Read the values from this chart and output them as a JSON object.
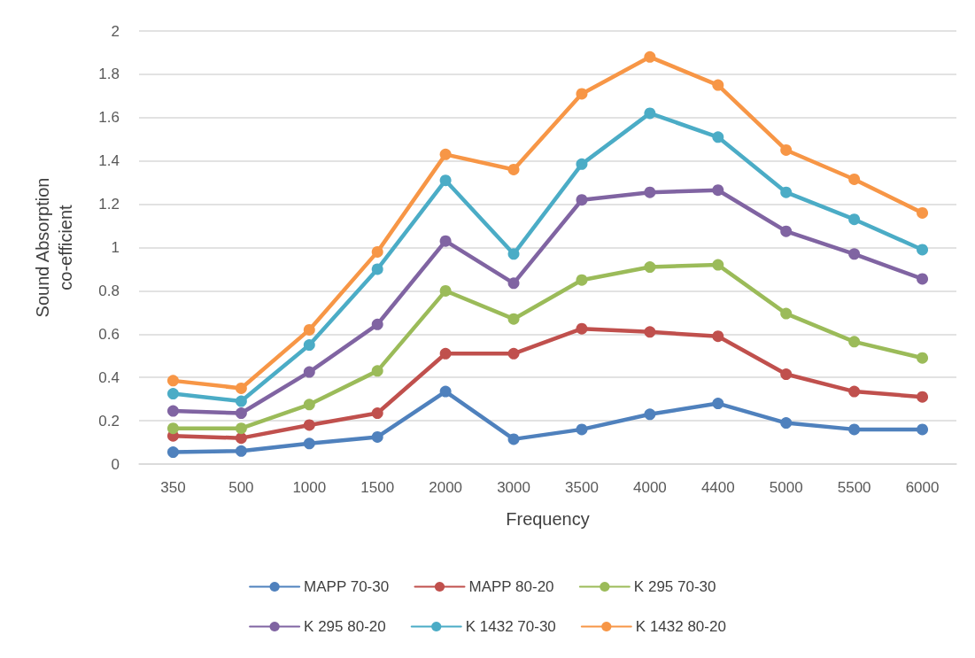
{
  "chart_data": {
    "type": "line",
    "xlabel": "Frequency",
    "ylabel": "Sound Absorption\nco-efficient",
    "categories": [
      "350",
      "500",
      "1000",
      "1500",
      "2000",
      "3000",
      "3500",
      "4000",
      "4400",
      "5000",
      "5500",
      "6000"
    ],
    "ylim": [
      0,
      2
    ],
    "yticks": [
      0,
      0.2,
      0.4,
      0.6,
      0.8,
      1,
      1.2,
      1.4,
      1.6,
      1.8,
      2
    ],
    "grid": "y",
    "legend": "bottom",
    "marker": "circle",
    "line_style": "solid",
    "series": [
      {
        "name": "MAPP 70-30",
        "color": "#4f81bd",
        "values": [
          0.055,
          0.06,
          0.095,
          0.125,
          0.335,
          0.115,
          0.16,
          0.23,
          0.28,
          0.19,
          0.16,
          0.16
        ]
      },
      {
        "name": "MAPP 80-20",
        "color": "#c0504d",
        "values": [
          0.13,
          0.12,
          0.18,
          0.235,
          0.51,
          0.51,
          0.625,
          0.61,
          0.59,
          0.415,
          0.335,
          0.31
        ]
      },
      {
        "name": "K 295 70-30",
        "color": "#9bbb59",
        "values": [
          0.165,
          0.165,
          0.275,
          0.43,
          0.8,
          0.67,
          0.85,
          0.91,
          0.92,
          0.695,
          0.565,
          0.49
        ]
      },
      {
        "name": "K 295 80-20",
        "color": "#8064a2",
        "values": [
          0.245,
          0.235,
          0.425,
          0.645,
          1.03,
          0.835,
          1.22,
          1.255,
          1.265,
          1.075,
          0.97,
          0.855
        ]
      },
      {
        "name": "K 1432 70-30",
        "color": "#4bacc6",
        "values": [
          0.325,
          0.29,
          0.55,
          0.9,
          1.31,
          0.97,
          1.385,
          1.62,
          1.51,
          1.255,
          1.13,
          0.99
        ]
      },
      {
        "name": "K 1432 80-20",
        "color": "#f79646",
        "values": [
          0.385,
          0.35,
          0.62,
          0.98,
          1.43,
          1.36,
          1.71,
          1.88,
          1.75,
          1.45,
          1.315,
          1.16
        ]
      }
    ]
  }
}
